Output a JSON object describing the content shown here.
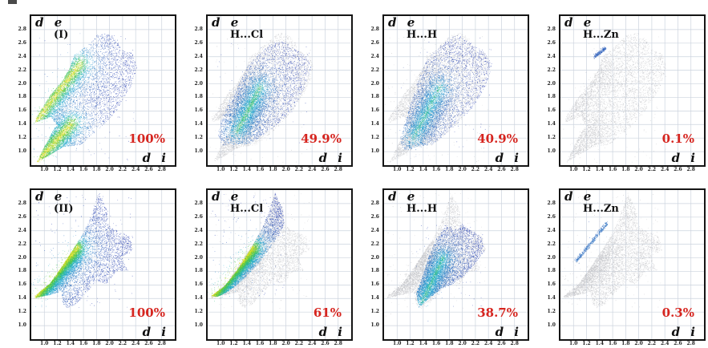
{
  "colors": {
    "percent_red": "#d6251f",
    "label_black": "#111111",
    "grid": "#ccd3de",
    "plot_border": "#151515",
    "background": "#ffffff",
    "gray_dots": "#c3c4c8",
    "heat_stops": [
      "#2a3fb0",
      "#23b3d8",
      "#3cc43e",
      "#f6e428"
    ]
  },
  "chart_data": {
    "type": "scatter",
    "subtype": "hirshfeld-fingerprint-plots",
    "grid": true,
    "xlabel": "d i",
    "ylabel": "d e",
    "xlim": [
      0.8,
      3.0
    ],
    "ylim": [
      0.8,
      3.0
    ],
    "ticks": [
      "1.0",
      "1.2",
      "1.4",
      "1.6",
      "1.8",
      "2.0",
      "2.2",
      "2.4",
      "2.6",
      "2.8"
    ],
    "legend": "none",
    "panels": [
      {
        "tag": "(I)",
        "percent": "100%",
        "gray": null,
        "heat": "I",
        "streak": "I",
        "intensity": 1.0,
        "dots": 9000,
        "sigma": 0.2,
        "gfrac": 0.55
      },
      {
        "tag": "H...Cl",
        "percent": "49.9%",
        "gray": "I",
        "heat": "I_cl",
        "streak": "I_cl",
        "intensity": 0.62,
        "dots": 6500,
        "sigma": 0.25,
        "gfrac": 0.45
      },
      {
        "tag": "H...H",
        "percent": "40.9%",
        "gray": "I",
        "heat": "I_h",
        "streak": "I_h",
        "intensity": 0.55,
        "dots": 6000,
        "sigma": 0.25,
        "gfrac": 0.45
      },
      {
        "tag": "H...Zn",
        "percent": "0.1%",
        "gray": "I",
        "heat": "I_zn",
        "streak": "I_zn",
        "intensity": 0.12,
        "dots": 240,
        "sigma": 0.03,
        "gfrac": 0.8
      },
      {
        "tag": "(II)",
        "percent": "100%",
        "gray": null,
        "heat": "II",
        "streak": "II",
        "intensity": 1.0,
        "dots": 9000,
        "sigma": 0.17,
        "gfrac": 0.6
      },
      {
        "tag": "H...Cl",
        "percent": "61%",
        "gray": "II",
        "heat": "II_cl",
        "streak": "II",
        "intensity": 1.0,
        "dots": 7000,
        "sigma": 0.14,
        "gfrac": 0.6
      },
      {
        "tag": "H...H",
        "percent": "38.7%",
        "gray": "II",
        "heat": "II_h",
        "streak": "II_h",
        "intensity": 0.55,
        "dots": 6000,
        "sigma": 0.22,
        "gfrac": 0.45
      },
      {
        "tag": "H...Zn",
        "percent": "0.3%",
        "gray": "II",
        "heat": "II_zn",
        "streak": "II_zn",
        "intensity": 0.18,
        "dots": 480,
        "sigma": 0.03,
        "gfrac": 0.8
      }
    ],
    "shapes": {
      "I": [
        [
          0.88,
          0.84
        ],
        [
          1.3,
          1.08
        ],
        [
          1.55,
          1.1
        ],
        [
          1.85,
          1.35
        ],
        [
          2.1,
          1.6
        ],
        [
          2.32,
          1.95
        ],
        [
          2.42,
          2.25
        ],
        [
          2.35,
          2.45
        ],
        [
          2.18,
          2.52
        ],
        [
          2.12,
          2.65
        ],
        [
          1.98,
          2.76
        ],
        [
          1.8,
          2.72
        ],
        [
          1.63,
          2.55
        ],
        [
          1.45,
          2.42
        ],
        [
          1.38,
          2.22
        ],
        [
          1.25,
          2.02
        ],
        [
          1.1,
          1.85
        ],
        [
          0.87,
          1.5
        ],
        [
          0.86,
          1.43
        ],
        [
          1.1,
          1.52
        ],
        [
          1.18,
          1.4
        ],
        [
          1.02,
          1.12
        ]
      ],
      "II": [
        [
          0.85,
          1.44
        ],
        [
          1.08,
          1.62
        ],
        [
          1.25,
          1.85
        ],
        [
          1.42,
          2.1
        ],
        [
          1.6,
          2.38
        ],
        [
          1.72,
          2.65
        ],
        [
          1.83,
          2.96
        ],
        [
          1.95,
          2.72
        ],
        [
          1.98,
          2.48
        ],
        [
          2.12,
          2.4
        ],
        [
          2.3,
          2.32
        ],
        [
          2.36,
          2.12
        ],
        [
          2.18,
          2.02
        ],
        [
          2.28,
          1.82
        ],
        [
          2.1,
          1.8
        ],
        [
          1.95,
          1.62
        ],
        [
          1.8,
          1.66
        ],
        [
          1.63,
          1.48
        ],
        [
          1.48,
          1.32
        ],
        [
          1.36,
          1.26
        ],
        [
          1.28,
          1.32
        ],
        [
          1.26,
          1.5
        ],
        [
          1.08,
          1.46
        ],
        [
          0.85,
          1.41
        ]
      ],
      "I_cl": [
        [
          1.02,
          1.1
        ],
        [
          1.45,
          1.12
        ],
        [
          1.8,
          1.35
        ],
        [
          2.1,
          1.62
        ],
        [
          2.3,
          1.98
        ],
        [
          2.38,
          2.25
        ],
        [
          2.3,
          2.42
        ],
        [
          2.15,
          2.5
        ],
        [
          2.02,
          2.62
        ],
        [
          1.88,
          2.64
        ],
        [
          1.74,
          2.58
        ],
        [
          1.58,
          2.44
        ],
        [
          1.42,
          2.28
        ],
        [
          1.3,
          2.05
        ],
        [
          1.14,
          1.78
        ],
        [
          1.0,
          1.48
        ],
        [
          0.95,
          1.25
        ]
      ],
      "I_h": [
        [
          1.1,
          1.02
        ],
        [
          1.55,
          1.12
        ],
        [
          1.9,
          1.4
        ],
        [
          2.15,
          1.65
        ],
        [
          2.38,
          2.0
        ],
        [
          2.45,
          2.3
        ],
        [
          2.32,
          2.5
        ],
        [
          2.1,
          2.62
        ],
        [
          1.95,
          2.72
        ],
        [
          1.78,
          2.68
        ],
        [
          1.6,
          2.5
        ],
        [
          1.45,
          2.35
        ],
        [
          1.33,
          2.08
        ],
        [
          1.21,
          1.72
        ],
        [
          1.11,
          1.42
        ],
        [
          1.04,
          1.18
        ]
      ],
      "I_zn": [
        [
          1.31,
          2.37
        ],
        [
          1.42,
          2.45
        ],
        [
          1.5,
          2.52
        ],
        [
          1.47,
          2.57
        ],
        [
          1.36,
          2.5
        ],
        [
          1.27,
          2.42
        ]
      ],
      "II_cl": [
        [
          0.85,
          1.44
        ],
        [
          1.05,
          1.58
        ],
        [
          1.25,
          1.82
        ],
        [
          1.45,
          2.12
        ],
        [
          1.62,
          2.42
        ],
        [
          1.72,
          2.65
        ],
        [
          1.83,
          2.96
        ],
        [
          1.95,
          2.72
        ],
        [
          1.97,
          2.5
        ],
        [
          1.9,
          2.35
        ],
        [
          1.79,
          2.2
        ],
        [
          1.67,
          2.04
        ],
        [
          1.54,
          1.88
        ],
        [
          1.4,
          1.74
        ],
        [
          1.24,
          1.6
        ],
        [
          1.08,
          1.49
        ],
        [
          0.94,
          1.43
        ]
      ],
      "II_h": [
        [
          1.33,
          1.27
        ],
        [
          1.5,
          1.42
        ],
        [
          1.68,
          1.55
        ],
        [
          1.85,
          1.62
        ],
        [
          2.0,
          1.72
        ],
        [
          2.16,
          1.88
        ],
        [
          2.33,
          2.1
        ],
        [
          2.3,
          2.3
        ],
        [
          2.15,
          2.4
        ],
        [
          2.0,
          2.5
        ],
        [
          1.88,
          2.42
        ],
        [
          1.74,
          2.5
        ],
        [
          1.61,
          2.3
        ],
        [
          1.49,
          2.04
        ],
        [
          1.39,
          1.74
        ],
        [
          1.29,
          1.48
        ]
      ],
      "II_zn": [
        [
          1.03,
          1.92
        ],
        [
          1.28,
          2.2
        ],
        [
          1.51,
          2.48
        ],
        [
          1.55,
          2.56
        ],
        [
          1.46,
          2.51
        ],
        [
          1.22,
          2.21
        ],
        [
          0.99,
          1.97
        ]
      ]
    },
    "streaks": {
      "I": [
        [
          [
            0.88,
            0.85
          ],
          [
            1.42,
            1.42
          ]
        ],
        [
          [
            0.87,
            1.46
          ],
          [
            1.55,
            2.3
          ]
        ]
      ],
      "I_cl": [
        [
          [
            1.25,
            1.3
          ],
          [
            1.6,
            1.95
          ]
        ]
      ],
      "I_h": [
        [
          [
            1.25,
            1.2
          ],
          [
            1.65,
            1.95
          ]
        ]
      ],
      "I_zn": [
        [
          [
            1.33,
            2.4
          ],
          [
            1.5,
            2.54
          ]
        ]
      ],
      "II": [
        [
          [
            0.86,
            1.43
          ],
          [
            1.5,
            2.15
          ]
        ]
      ],
      "II_h": [
        [
          [
            1.38,
            1.35
          ],
          [
            1.7,
            2.0
          ]
        ]
      ],
      "II_zn": [
        [
          [
            1.04,
            1.95
          ],
          [
            1.52,
            2.52
          ]
        ]
      ]
    }
  }
}
